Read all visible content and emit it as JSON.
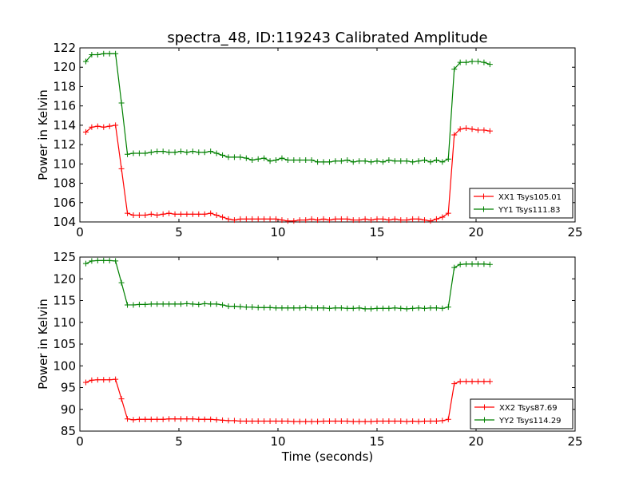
{
  "chart_data": [
    {
      "type": "line",
      "title": "spectra_48, ID:119243 Calibrated Amplitude",
      "xlabel": "",
      "ylabel": "Power in Kelvin",
      "xlim": [
        0,
        25
      ],
      "ylim": [
        104,
        122
      ],
      "xticks": [
        "0",
        "5",
        "10",
        "15",
        "20",
        "25"
      ],
      "yticks": [
        "104",
        "106",
        "108",
        "110",
        "112",
        "114",
        "116",
        "118",
        "120",
        "122"
      ],
      "legend_position": "lower-right",
      "series": [
        {
          "name": "XX1 Tsys105.01",
          "color": "#ff0000",
          "x": [
            0.3,
            0.6,
            0.9,
            1.2,
            1.5,
            1.8,
            2.1,
            2.4,
            2.7,
            3.0,
            3.3,
            3.6,
            3.9,
            4.2,
            4.5,
            4.8,
            5.1,
            5.4,
            5.7,
            6.0,
            6.3,
            6.6,
            6.9,
            7.2,
            7.5,
            7.8,
            8.1,
            8.4,
            8.7,
            9.0,
            9.3,
            9.6,
            9.9,
            10.2,
            10.5,
            10.8,
            11.1,
            11.4,
            11.7,
            12.0,
            12.3,
            12.6,
            12.9,
            13.2,
            13.5,
            13.8,
            14.1,
            14.4,
            14.7,
            15.0,
            15.3,
            15.6,
            15.9,
            16.2,
            16.5,
            16.8,
            17.1,
            17.4,
            17.7,
            18.0,
            18.3,
            18.6,
            18.9,
            19.2,
            19.5,
            19.8,
            20.1,
            20.4,
            20.7
          ],
          "y": [
            113.3,
            113.8,
            113.9,
            113.8,
            113.9,
            114.0,
            109.5,
            104.9,
            104.7,
            104.7,
            104.7,
            104.8,
            104.7,
            104.8,
            104.9,
            104.8,
            104.8,
            104.8,
            104.8,
            104.8,
            104.8,
            104.9,
            104.7,
            104.5,
            104.3,
            104.2,
            104.3,
            104.3,
            104.3,
            104.3,
            104.3,
            104.3,
            104.3,
            104.2,
            104.1,
            104.1,
            104.2,
            104.2,
            104.3,
            104.2,
            104.3,
            104.2,
            104.3,
            104.3,
            104.3,
            104.2,
            104.2,
            104.3,
            104.2,
            104.3,
            104.3,
            104.2,
            104.3,
            104.2,
            104.2,
            104.3,
            104.3,
            104.2,
            104.1,
            104.3,
            104.5,
            104.9,
            113.0,
            113.6,
            113.7,
            113.6,
            113.5,
            113.5,
            113.4
          ]
        },
        {
          "name": "YY1 Tsys111.83",
          "color": "#008000",
          "x": [
            0.3,
            0.6,
            0.9,
            1.2,
            1.5,
            1.8,
            2.1,
            2.4,
            2.7,
            3.0,
            3.3,
            3.6,
            3.9,
            4.2,
            4.5,
            4.8,
            5.1,
            5.4,
            5.7,
            6.0,
            6.3,
            6.6,
            6.9,
            7.2,
            7.5,
            7.8,
            8.1,
            8.4,
            8.7,
            9.0,
            9.3,
            9.6,
            9.9,
            10.2,
            10.5,
            10.8,
            11.1,
            11.4,
            11.7,
            12.0,
            12.3,
            12.6,
            12.9,
            13.2,
            13.5,
            13.8,
            14.1,
            14.4,
            14.7,
            15.0,
            15.3,
            15.6,
            15.9,
            16.2,
            16.5,
            16.8,
            17.1,
            17.4,
            17.7,
            18.0,
            18.3,
            18.6,
            18.9,
            19.2,
            19.5,
            19.8,
            20.1,
            20.4,
            20.7
          ],
          "y": [
            120.6,
            121.3,
            121.3,
            121.4,
            121.4,
            121.4,
            116.3,
            111.0,
            111.1,
            111.1,
            111.1,
            111.2,
            111.3,
            111.3,
            111.2,
            111.2,
            111.3,
            111.2,
            111.3,
            111.2,
            111.2,
            111.3,
            111.1,
            110.9,
            110.7,
            110.7,
            110.7,
            110.6,
            110.4,
            110.5,
            110.6,
            110.3,
            110.4,
            110.6,
            110.4,
            110.4,
            110.4,
            110.4,
            110.4,
            110.2,
            110.2,
            110.2,
            110.3,
            110.3,
            110.4,
            110.2,
            110.3,
            110.3,
            110.2,
            110.3,
            110.2,
            110.4,
            110.3,
            110.3,
            110.3,
            110.2,
            110.3,
            110.4,
            110.2,
            110.4,
            110.2,
            110.5,
            119.8,
            120.5,
            120.5,
            120.6,
            120.6,
            120.5,
            120.3
          ]
        }
      ]
    },
    {
      "type": "line",
      "title": "",
      "xlabel": "Time (seconds)",
      "ylabel": "Power in Kelvin",
      "xlim": [
        0,
        25
      ],
      "ylim": [
        85,
        125
      ],
      "xticks": [
        "0",
        "5",
        "10",
        "15",
        "20",
        "25"
      ],
      "yticks": [
        "85",
        "90",
        "95",
        "100",
        "105",
        "110",
        "115",
        "120",
        "125"
      ],
      "legend_position": "lower-right",
      "series": [
        {
          "name": "XX2 Tsys87.69",
          "color": "#ff0000",
          "x": [
            0.3,
            0.6,
            0.9,
            1.2,
            1.5,
            1.8,
            2.1,
            2.4,
            2.7,
            3.0,
            3.3,
            3.6,
            3.9,
            4.2,
            4.5,
            4.8,
            5.1,
            5.4,
            5.7,
            6.0,
            6.3,
            6.6,
            6.9,
            7.2,
            7.5,
            7.8,
            8.1,
            8.4,
            8.7,
            9.0,
            9.3,
            9.6,
            9.9,
            10.2,
            10.5,
            10.8,
            11.1,
            11.4,
            11.7,
            12.0,
            12.3,
            12.6,
            12.9,
            13.2,
            13.5,
            13.8,
            14.1,
            14.4,
            14.7,
            15.0,
            15.3,
            15.6,
            15.9,
            16.2,
            16.5,
            16.8,
            17.1,
            17.4,
            17.7,
            18.0,
            18.3,
            18.6,
            18.9,
            19.2,
            19.5,
            19.8,
            20.1,
            20.4,
            20.7
          ],
          "y": [
            96.2,
            96.7,
            96.8,
            96.8,
            96.8,
            96.9,
            92.4,
            87.8,
            87.6,
            87.7,
            87.7,
            87.7,
            87.7,
            87.7,
            87.8,
            87.8,
            87.8,
            87.8,
            87.8,
            87.7,
            87.7,
            87.7,
            87.6,
            87.5,
            87.4,
            87.4,
            87.3,
            87.3,
            87.3,
            87.3,
            87.3,
            87.3,
            87.3,
            87.3,
            87.3,
            87.2,
            87.2,
            87.2,
            87.2,
            87.2,
            87.3,
            87.3,
            87.3,
            87.3,
            87.3,
            87.2,
            87.2,
            87.2,
            87.2,
            87.3,
            87.3,
            87.3,
            87.3,
            87.3,
            87.2,
            87.3,
            87.2,
            87.3,
            87.3,
            87.3,
            87.4,
            87.7,
            95.9,
            96.4,
            96.4,
            96.4,
            96.4,
            96.4,
            96.4
          ]
        },
        {
          "name": "YY2 Tsys114.29",
          "color": "#008000",
          "x": [
            0.3,
            0.6,
            0.9,
            1.2,
            1.5,
            1.8,
            2.1,
            2.4,
            2.7,
            3.0,
            3.3,
            3.6,
            3.9,
            4.2,
            4.5,
            4.8,
            5.1,
            5.4,
            5.7,
            6.0,
            6.3,
            6.6,
            6.9,
            7.2,
            7.5,
            7.8,
            8.1,
            8.4,
            8.7,
            9.0,
            9.3,
            9.6,
            9.9,
            10.2,
            10.5,
            10.8,
            11.1,
            11.4,
            11.7,
            12.0,
            12.3,
            12.6,
            12.9,
            13.2,
            13.5,
            13.8,
            14.1,
            14.4,
            14.7,
            15.0,
            15.3,
            15.6,
            15.9,
            16.2,
            16.5,
            16.8,
            17.1,
            17.4,
            17.7,
            18.0,
            18.3,
            18.6,
            18.9,
            19.2,
            19.5,
            19.8,
            20.1,
            20.4,
            20.7
          ],
          "y": [
            123.5,
            124.1,
            124.2,
            124.2,
            124.2,
            124.1,
            119.1,
            114.0,
            114.0,
            114.1,
            114.1,
            114.2,
            114.2,
            114.2,
            114.2,
            114.2,
            114.2,
            114.3,
            114.2,
            114.1,
            114.3,
            114.2,
            114.2,
            114.0,
            113.7,
            113.7,
            113.6,
            113.5,
            113.5,
            113.4,
            113.4,
            113.4,
            113.3,
            113.3,
            113.3,
            113.3,
            113.3,
            113.4,
            113.3,
            113.3,
            113.3,
            113.2,
            113.3,
            113.3,
            113.2,
            113.2,
            113.3,
            113.1,
            113.1,
            113.2,
            113.2,
            113.2,
            113.3,
            113.2,
            113.1,
            113.2,
            113.3,
            113.2,
            113.3,
            113.3,
            113.2,
            113.5,
            122.6,
            123.3,
            123.4,
            123.4,
            123.4,
            123.4,
            123.3
          ]
        }
      ]
    }
  ]
}
